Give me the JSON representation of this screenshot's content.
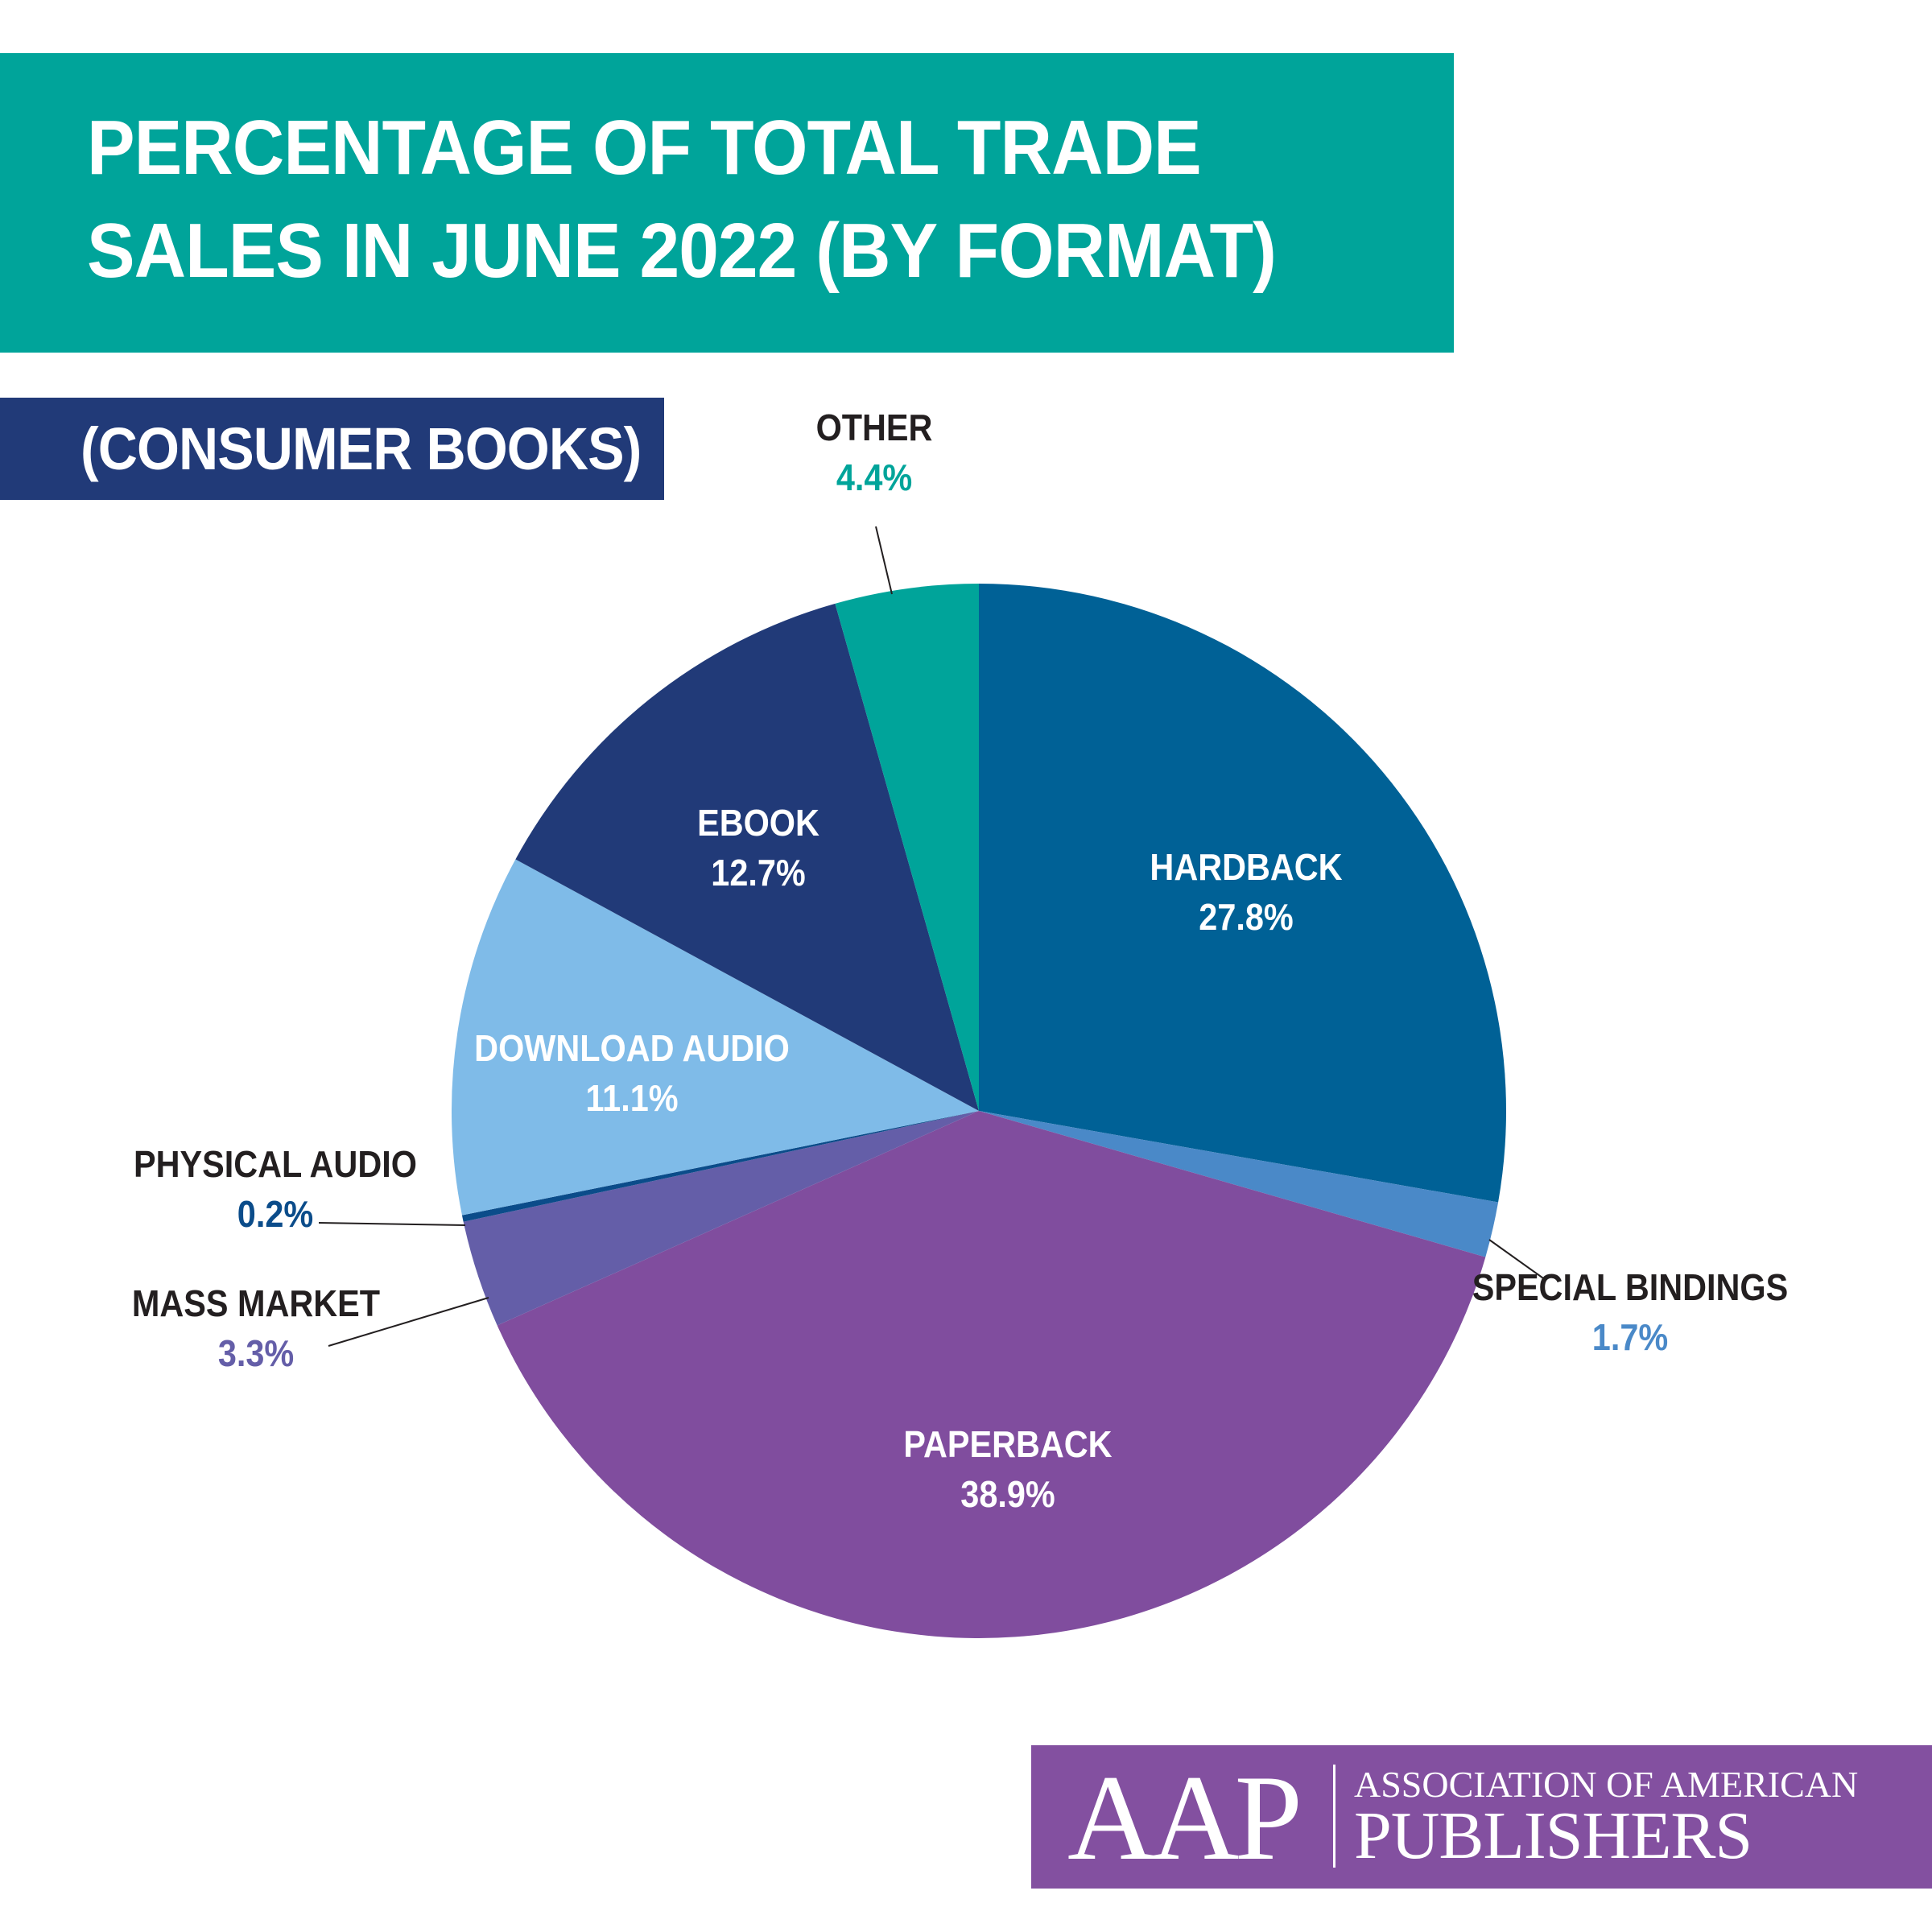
{
  "header": {
    "title": "PERCENTAGE OF TOTAL TRADE SALES IN JUNE 2022 (BY FORMAT)",
    "subtitle": "(CONSUMER BOOKS)"
  },
  "chart_data": {
    "type": "pie",
    "title": "PERCENTAGE OF TOTAL TRADE SALES IN JUNE 2022 (BY FORMAT)",
    "subtitle": "(CONSUMER BOOKS)",
    "slices": [
      {
        "label": "HARDBACK",
        "value": 27.8,
        "value_label": "27.8%",
        "color": "#006196"
      },
      {
        "label": "SPECIAL BINDINGS",
        "value": 1.7,
        "value_label": "1.7%",
        "color": "#4a89c8"
      },
      {
        "label": "PAPERBACK",
        "value": 38.9,
        "value_label": "38.9%",
        "color": "#804d9e"
      },
      {
        "label": "MASS MARKET",
        "value": 3.3,
        "value_label": "3.3%",
        "color": "#645ea8"
      },
      {
        "label": "PHYSICAL AUDIO",
        "value": 0.2,
        "value_label": "0.2%",
        "color": "#0b4c8a"
      },
      {
        "label": "DOWNLOAD AUDIO",
        "value": 11.1,
        "value_label": "11.1%",
        "color": "#7fbbe8"
      },
      {
        "label": "EBOOK",
        "value": 12.7,
        "value_label": "12.7%",
        "color": "#213a78"
      },
      {
        "label": "OTHER",
        "value": 4.4,
        "value_label": "4.4%",
        "color": "#00a49a"
      }
    ],
    "label_colors": {
      "inside": "#ffffff",
      "outside_name": "#231f20"
    },
    "outside_value_colors": {
      "SPECIAL BINDINGS": "#4a89c8",
      "MASS MARKET": "#645ea8",
      "PHYSICAL AUDIO": "#0b4c8a",
      "OTHER": "#00a49a"
    }
  },
  "colors": {
    "title_band": "#00a49a",
    "subtitle_band": "#213a78",
    "logo_band": "#8350a0"
  },
  "logo": {
    "mark": "AAP",
    "line1": "ASSOCIATION OF AMERICAN",
    "line2": "PUBLISHERS"
  }
}
